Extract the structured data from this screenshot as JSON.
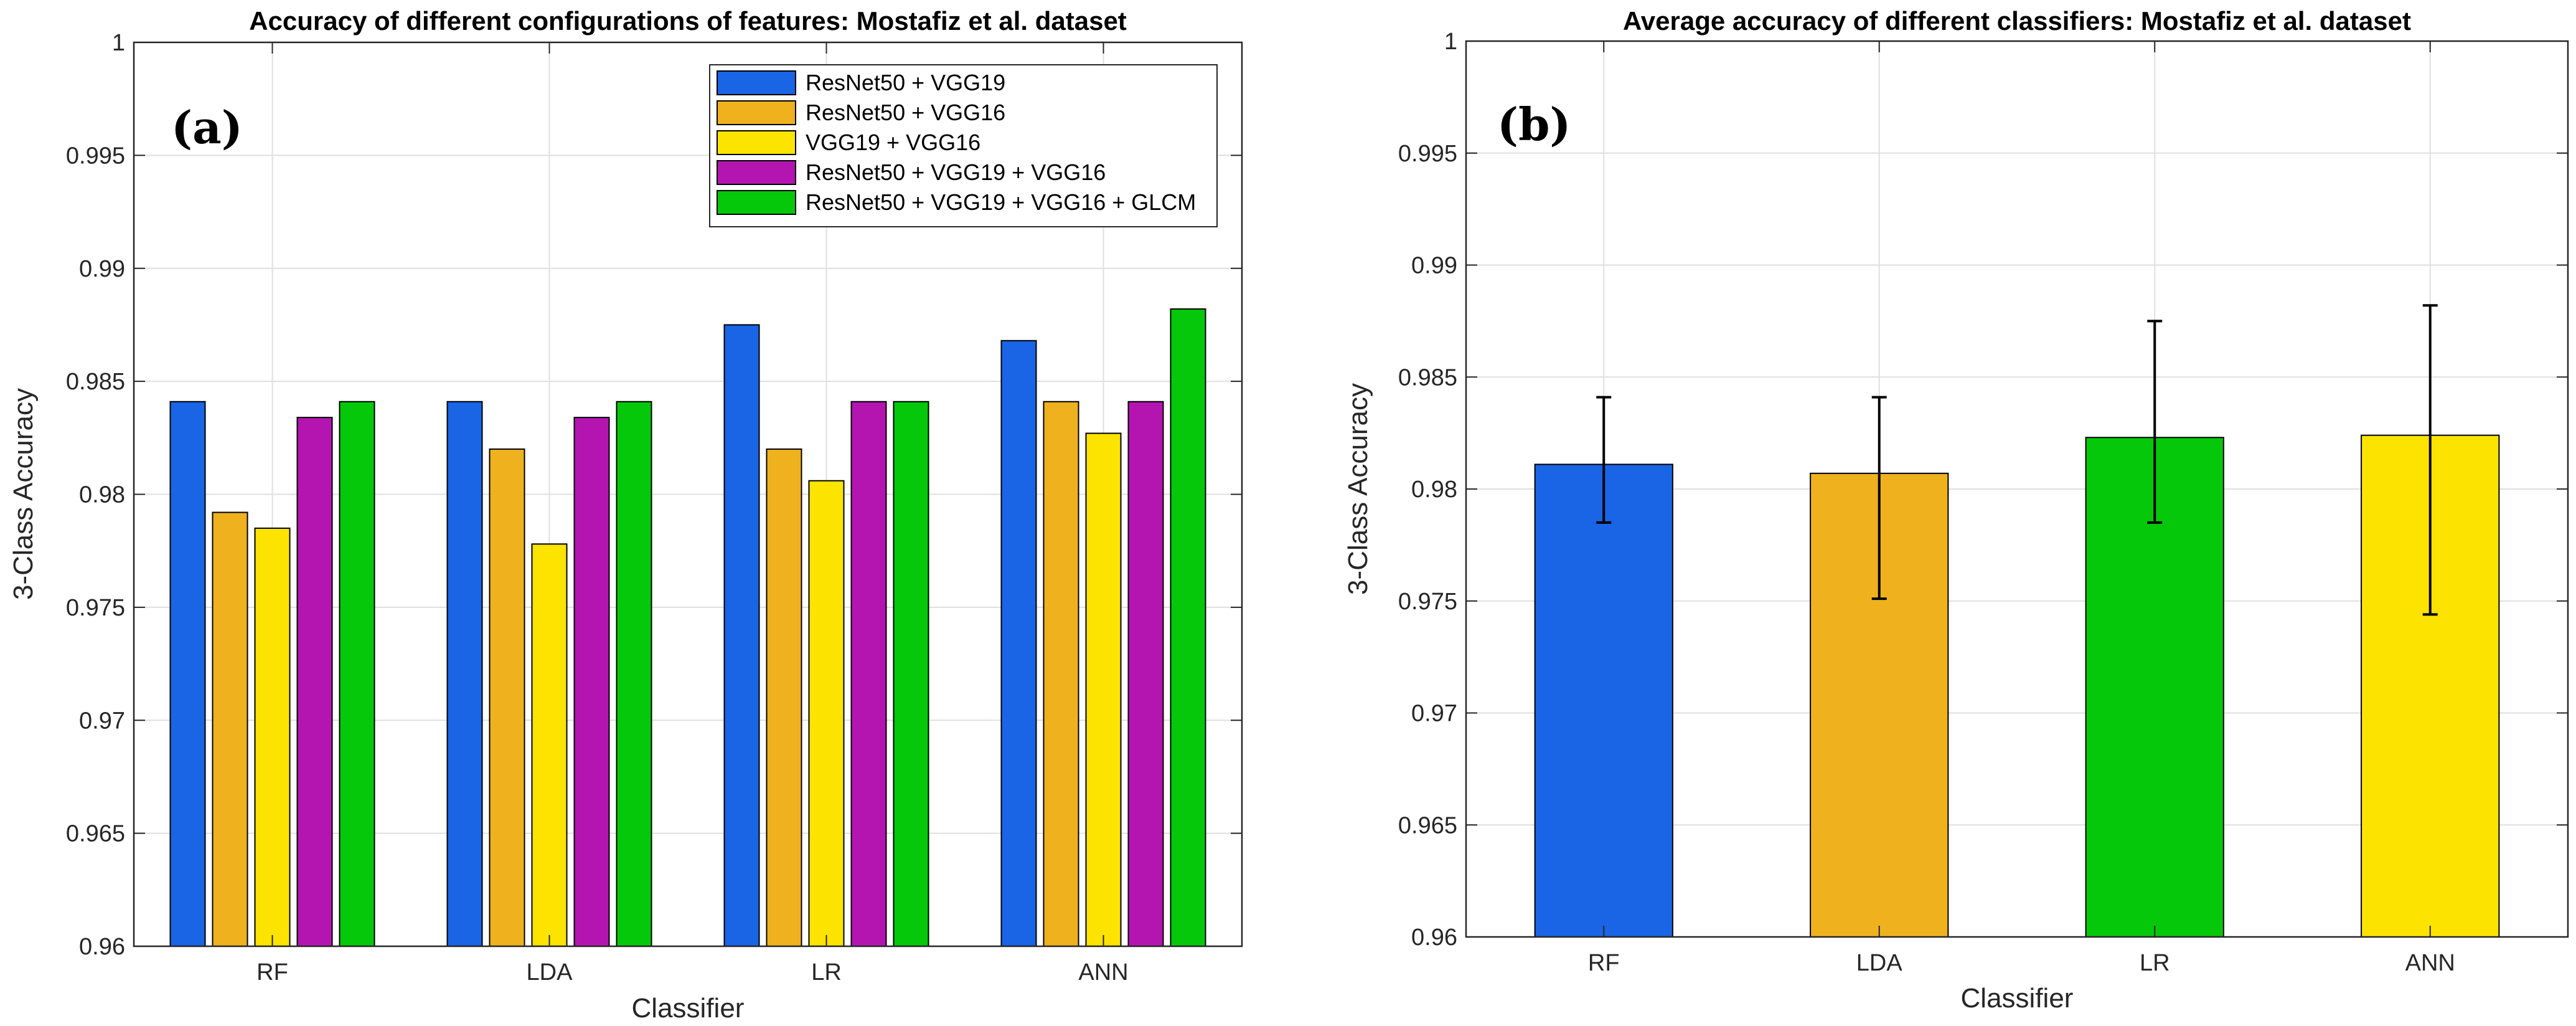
{
  "chart_data": [
    {
      "type": "bar",
      "panel_label": "(a)",
      "title": "Accuracy of different configurations of features: Mostafiz et al. dataset",
      "xlabel": "Classifier",
      "ylabel": "3-Class Accuracy",
      "ylim": [
        0.96,
        1
      ],
      "yticks": [
        0.96,
        0.965,
        0.97,
        0.975,
        0.98,
        0.985,
        0.99,
        0.995,
        1
      ],
      "ytick_labels": [
        "0.96",
        "0.965",
        "0.97",
        "0.975",
        "0.98",
        "0.985",
        "0.99",
        "0.995",
        "1"
      ],
      "grid": true,
      "legend_position": "top-right",
      "categories": [
        "RF",
        "LDA",
        "LR",
        "ANN"
      ],
      "series": [
        {
          "name": "ResNet50 + VGG19",
          "color": "#1a64e6",
          "values": [
            0.9841,
            0.9841,
            0.9875,
            0.9868
          ]
        },
        {
          "name": "ResNet50 + VGG16",
          "color": "#efb21e",
          "values": [
            0.9792,
            0.982,
            0.982,
            0.9841
          ]
        },
        {
          "name": "VGG19 + VGG16",
          "color": "#fde300",
          "values": [
            0.9785,
            0.9778,
            0.9806,
            0.9827
          ]
        },
        {
          "name": "ResNet50 + VGG19 + VGG16",
          "color": "#b415b1",
          "values": [
            0.9834,
            0.9834,
            0.9841,
            0.9841
          ]
        },
        {
          "name": "ResNet50 + VGG19 + VGG16 + GLCM",
          "color": "#06c80a",
          "values": [
            0.9841,
            0.9841,
            0.9841,
            0.9882
          ]
        }
      ]
    },
    {
      "type": "bar",
      "panel_label": "(b)",
      "title": "Average accuracy of different classifiers: Mostafiz et al. dataset",
      "xlabel": "Classifier",
      "ylabel": "3-Class Accuracy",
      "ylim": [
        0.96,
        1
      ],
      "yticks": [
        0.96,
        0.965,
        0.97,
        0.975,
        0.98,
        0.985,
        0.99,
        0.995,
        1
      ],
      "ytick_labels": [
        "0.96",
        "0.965",
        "0.97",
        "0.975",
        "0.98",
        "0.985",
        "0.99",
        "0.995",
        "1"
      ],
      "grid": true,
      "categories": [
        "RF",
        "LDA",
        "LR",
        "ANN"
      ],
      "values": [
        0.9811,
        0.9807,
        0.9823,
        0.9824
      ],
      "error_low": [
        0.9785,
        0.9751,
        0.9785,
        0.9744
      ],
      "error_high": [
        0.9841,
        0.9841,
        0.9875,
        0.9882
      ],
      "colors": [
        "#1a64e6",
        "#efb21e",
        "#06c80a",
        "#fde300"
      ]
    }
  ]
}
